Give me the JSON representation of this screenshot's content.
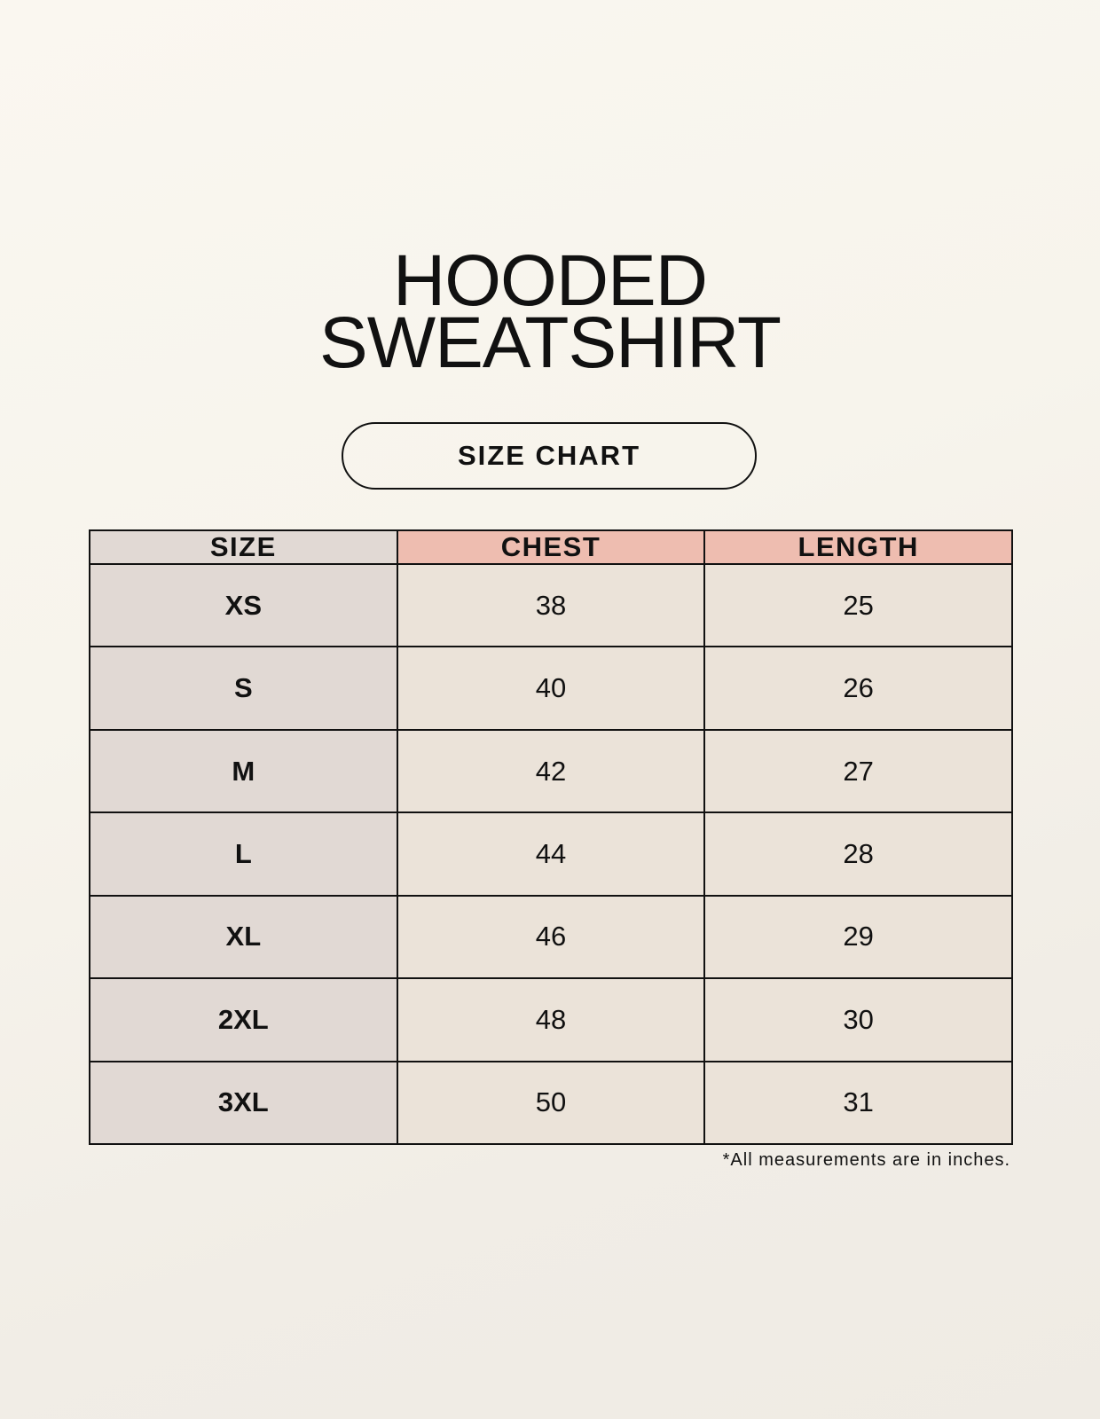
{
  "title": {
    "line1": "HOODED",
    "line2": "SWEATSHIRT"
  },
  "subtitle": "SIZE CHART",
  "colors": {
    "size_column": "#e1d9d4",
    "header_accent": "#eebdb0",
    "cell": "#ebe3d9"
  },
  "table": {
    "headers": [
      "SIZE",
      "CHEST",
      "LENGTH"
    ],
    "rows": [
      [
        "XS",
        "38",
        "25"
      ],
      [
        "S",
        "40",
        "26"
      ],
      [
        "M",
        "42",
        "27"
      ],
      [
        "L",
        "44",
        "28"
      ],
      [
        "XL",
        "46",
        "29"
      ],
      [
        "2XL",
        "48",
        "30"
      ],
      [
        "3XL",
        "50",
        "31"
      ]
    ]
  },
  "footnote": "*All measurements are in inches."
}
